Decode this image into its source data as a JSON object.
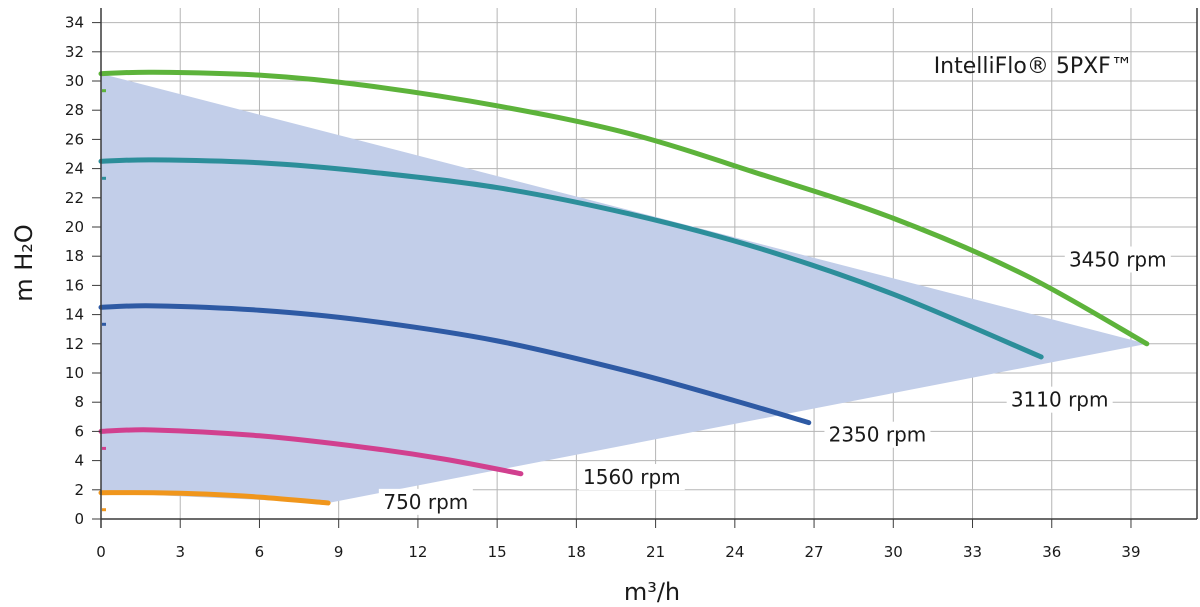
{
  "chart_data": {
    "type": "line",
    "title": "IntelliFlo® 5PXF™",
    "xlabel": "m³/h",
    "ylabel": "m H₂O",
    "xlim": [
      0,
      41.5
    ],
    "ylim": [
      0,
      35
    ],
    "xticks": [
      0,
      3,
      6,
      9,
      12,
      15,
      18,
      21,
      24,
      27,
      30,
      33,
      36,
      39
    ],
    "yticks": [
      0,
      2,
      4,
      6,
      8,
      10,
      12,
      14,
      16,
      18,
      20,
      22,
      24,
      26,
      28,
      30,
      32,
      34
    ],
    "grid": true,
    "operating_region": {
      "color": "#c2cee9",
      "points": [
        [
          0,
          30.5
        ],
        [
          39.6,
          12.0
        ],
        [
          8.6,
          1.1
        ],
        [
          0,
          1.8
        ]
      ]
    },
    "series": [
      {
        "name": "3450 rpm",
        "color": "#5db33b",
        "x": [
          0,
          2,
          6,
          10,
          15,
          20,
          25,
          30,
          35,
          39.6
        ],
        "y": [
          30.5,
          30.6,
          30.4,
          29.7,
          28.3,
          26.4,
          23.6,
          20.6,
          16.7,
          12.0
        ]
      },
      {
        "name": "3110 rpm",
        "color": "#2c8e9a",
        "x": [
          0,
          2,
          6,
          10,
          15,
          20,
          25,
          30,
          35.6
        ],
        "y": [
          24.5,
          24.6,
          24.4,
          23.8,
          22.7,
          20.9,
          18.5,
          15.4,
          11.1
        ]
      },
      {
        "name": "2350 rpm",
        "color": "#2e5aa4",
        "x": [
          0,
          2,
          6,
          10,
          15,
          20,
          24,
          26.8
        ],
        "y": [
          14.5,
          14.6,
          14.3,
          13.6,
          12.2,
          10.1,
          8.1,
          6.6
        ]
      },
      {
        "name": "1560 rpm",
        "color": "#d1408f",
        "x": [
          0,
          2,
          6,
          10,
          13,
          15.9
        ],
        "y": [
          6.0,
          6.1,
          5.7,
          4.9,
          4.1,
          3.1
        ]
      },
      {
        "name": "750 rpm",
        "color": "#f0961c",
        "x": [
          0,
          2,
          4,
          6,
          8.6
        ],
        "y": [
          1.8,
          1.8,
          1.7,
          1.5,
          1.1
        ]
      }
    ],
    "curve_labels": [
      {
        "text": "3450 rpm",
        "x": 38.5,
        "y": 17.5
      },
      {
        "text": "3110 rpm",
        "x": 36.3,
        "y": 7.9
      },
      {
        "text": "2350 rpm",
        "x": 29.4,
        "y": 5.5
      },
      {
        "text": "1560 rpm",
        "x": 20.1,
        "y": 2.6
      },
      {
        "text": "750 rpm",
        "x": 12.3,
        "y": 0.9
      }
    ],
    "title_position": {
      "x": 35.3,
      "y": 31.1
    }
  }
}
